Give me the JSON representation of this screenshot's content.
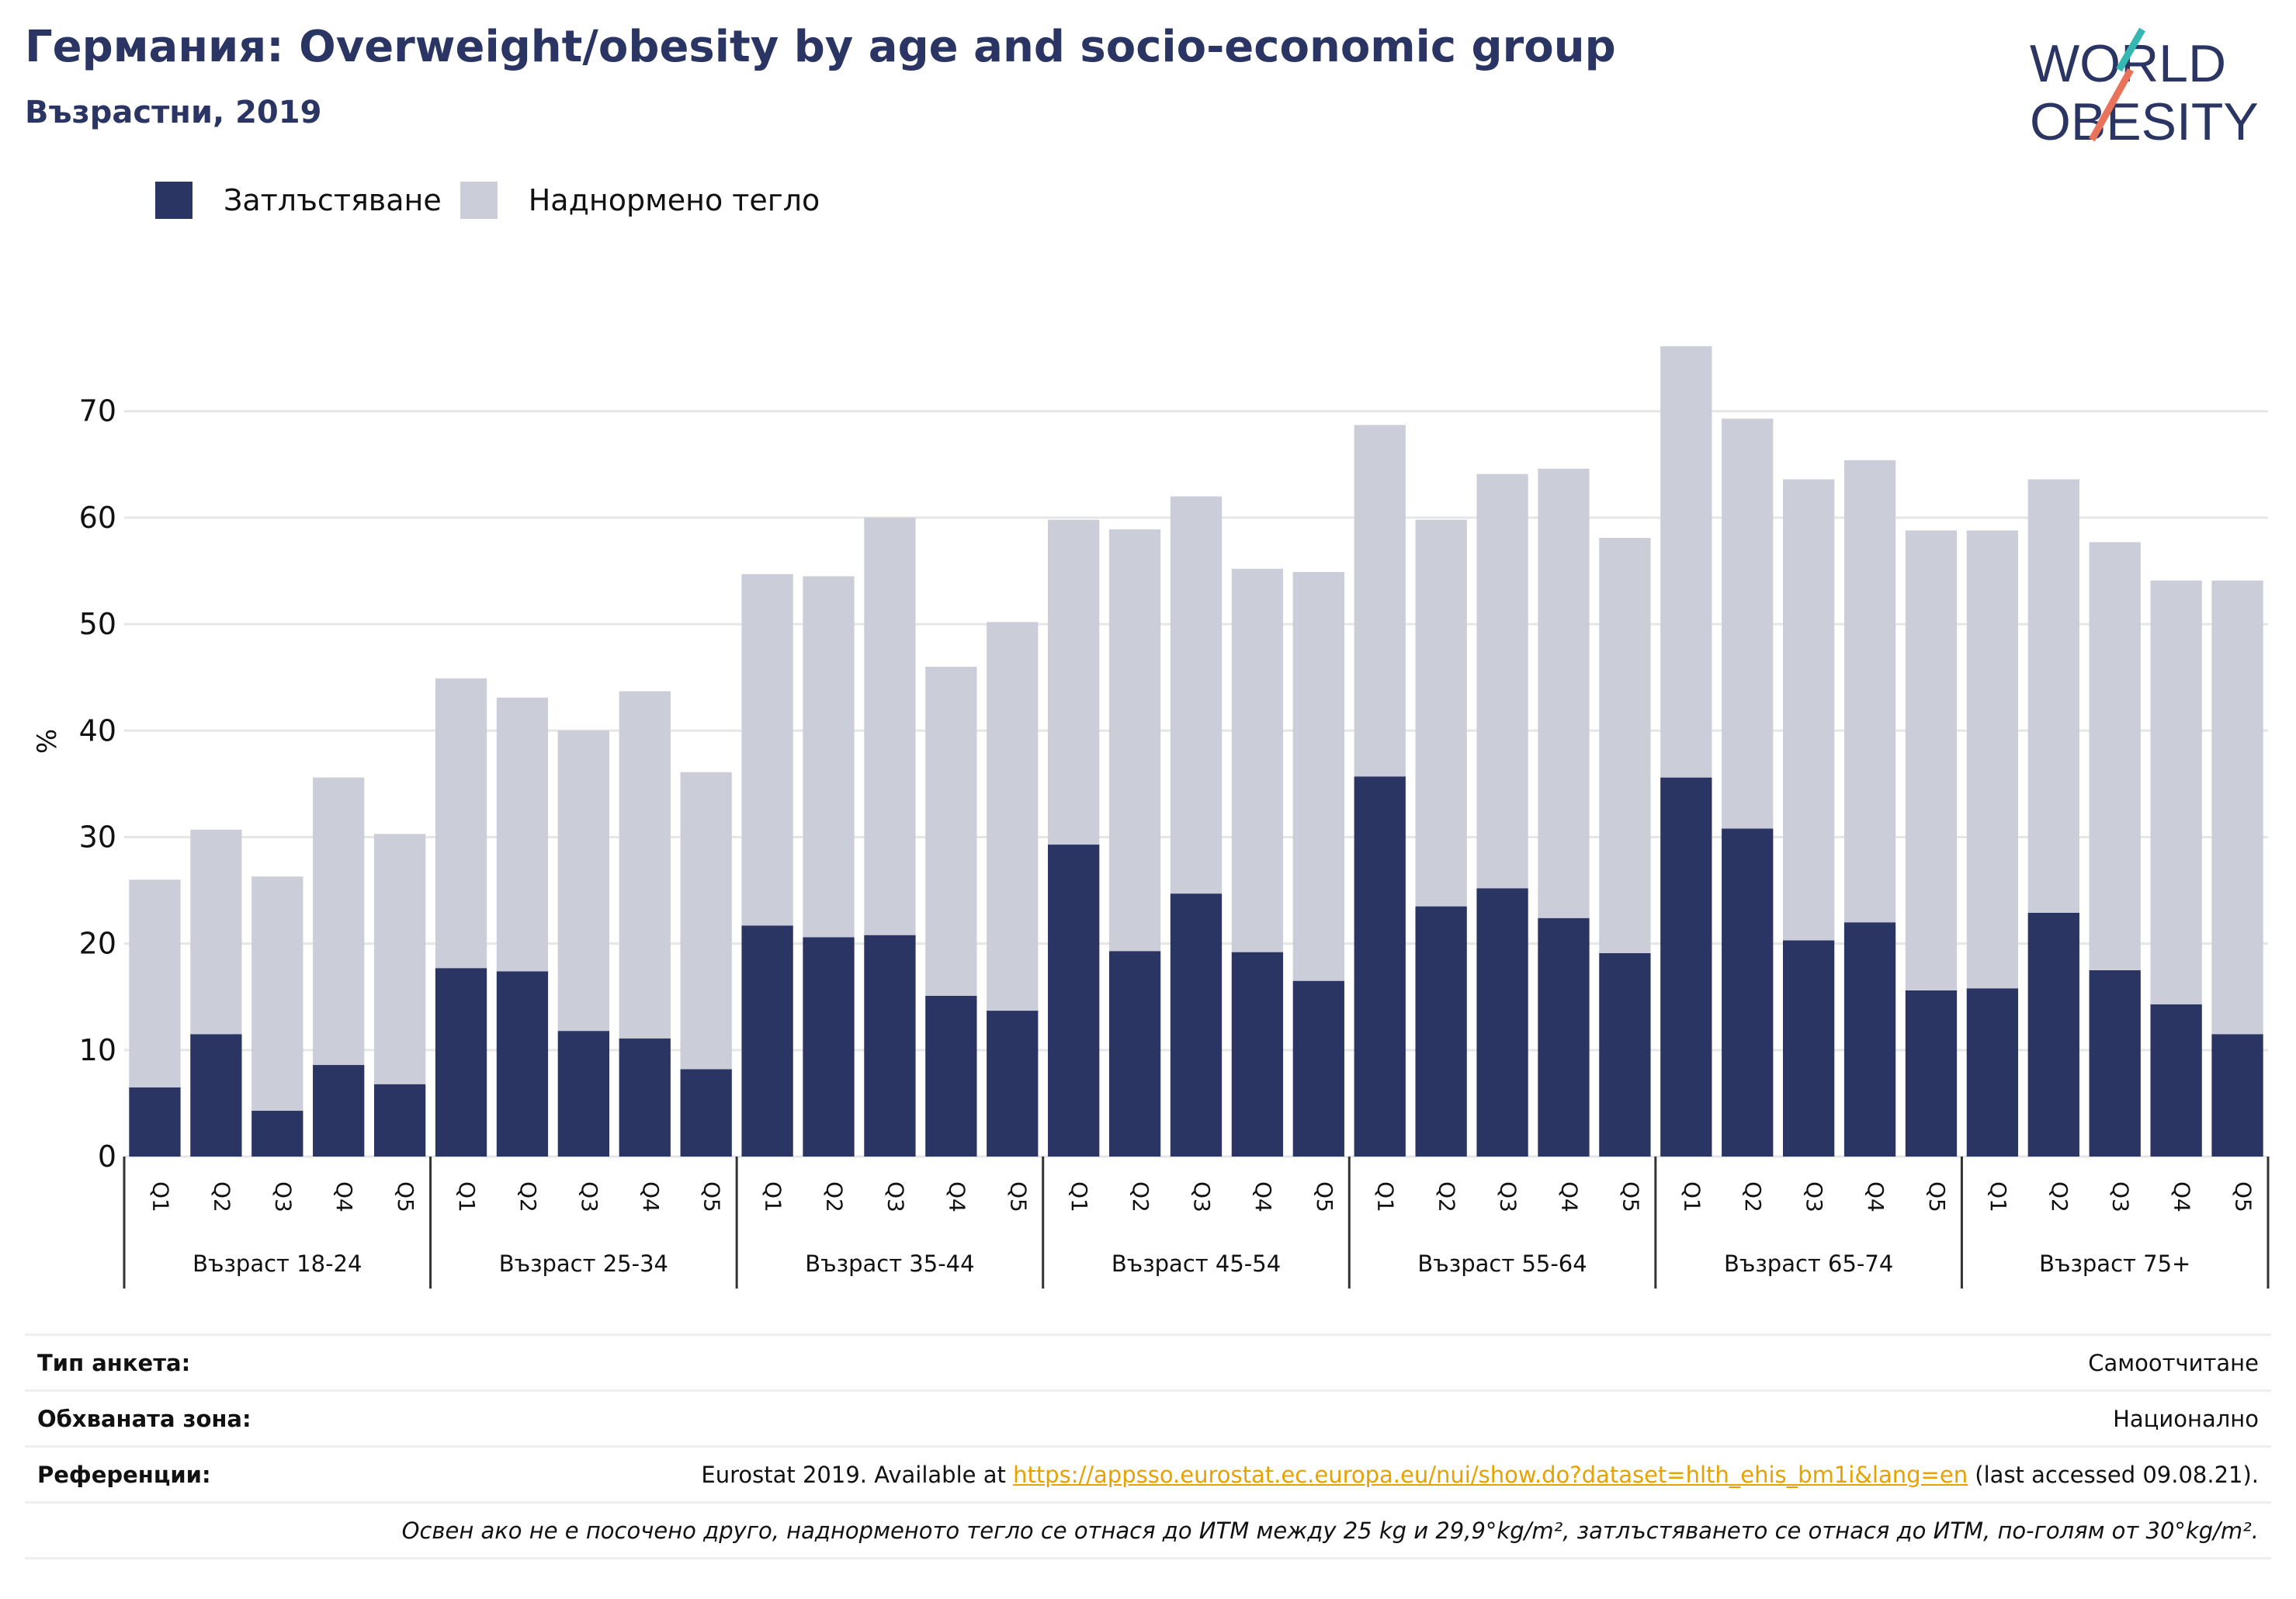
{
  "header": {
    "title": "Германия: Overweight/obesity by age and socio-economic group",
    "subtitle": "Възрастни, 2019",
    "logo_line1": "WORLD",
    "logo_line2": "OBESITY"
  },
  "legend": {
    "items": [
      {
        "label": "Затлъстяване",
        "color": "#2a3563"
      },
      {
        "label": "Наднормено тегло",
        "color": "#cbcdd9"
      }
    ]
  },
  "chart_data": {
    "type": "bar",
    "stacked": true,
    "ylabel": "%",
    "ylim": [
      0,
      78
    ],
    "yticks": [
      0,
      10,
      20,
      30,
      40,
      50,
      60,
      70
    ],
    "grid": true,
    "legend_position": "top-left",
    "groups": [
      {
        "label": "Възраст 18-24",
        "categories": [
          "Q1",
          "Q2",
          "Q3",
          "Q4",
          "Q5"
        ]
      },
      {
        "label": "Възраст 25-34",
        "categories": [
          "Q1",
          "Q2",
          "Q3",
          "Q4",
          "Q5"
        ]
      },
      {
        "label": "Възраст 35-44",
        "categories": [
          "Q1",
          "Q2",
          "Q3",
          "Q4",
          "Q5"
        ]
      },
      {
        "label": "Възраст 45-54",
        "categories": [
          "Q1",
          "Q2",
          "Q3",
          "Q4",
          "Q5"
        ]
      },
      {
        "label": "Възраст 55-64",
        "categories": [
          "Q1",
          "Q2",
          "Q3",
          "Q4",
          "Q5"
        ]
      },
      {
        "label": "Възраст 65-74",
        "categories": [
          "Q1",
          "Q2",
          "Q3",
          "Q4",
          "Q5"
        ]
      },
      {
        "label": "Възраст 75+",
        "categories": [
          "Q1",
          "Q2",
          "Q3",
          "Q4",
          "Q5"
        ]
      }
    ],
    "series": [
      {
        "name": "Затлъстяване",
        "color": "#2a3563",
        "values": [
          6.5,
          11.5,
          4.3,
          8.6,
          6.8,
          17.7,
          17.4,
          11.8,
          11.1,
          8.2,
          21.7,
          20.6,
          20.8,
          15.1,
          13.7,
          29.3,
          19.3,
          24.7,
          19.2,
          16.5,
          35.7,
          23.5,
          25.2,
          22.4,
          19.1,
          35.6,
          30.8,
          20.3,
          22.0,
          15.6,
          15.8,
          22.9,
          17.5,
          14.3,
          11.5
        ]
      },
      {
        "name": "Наднормено тегло",
        "color": "#cbcdd9",
        "values": [
          19.5,
          19.2,
          22.0,
          27.0,
          23.5,
          27.2,
          25.7,
          28.2,
          32.6,
          27.9,
          33.0,
          33.9,
          39.2,
          30.9,
          36.5,
          30.5,
          39.6,
          37.3,
          36.0,
          38.4,
          33.0,
          36.3,
          38.9,
          42.2,
          39.0,
          40.5,
          38.5,
          43.3,
          43.4,
          43.2,
          43.0,
          40.7,
          40.2,
          39.8,
          42.6
        ]
      }
    ]
  },
  "footer": {
    "survey_label": "Тип анкета:",
    "survey_value": "Самоотчитане",
    "area_label": "Обхваната зона:",
    "area_value": "Национално",
    "refs_label": "Референции:",
    "refs_prefix": "Eurostat 2019. Available at ",
    "refs_link": "https://appsso.eurostat.ec.europa.eu/nui/show.do?dataset=hlth_ehis_bm1i&lang=en",
    "refs_suffix": " (last accessed 09.08.21).",
    "note": "Освен ако не е посочено друго, наднорменото тегло се отнася до ИТМ между 25 kg и 29,9°kg/m², затлъстяването се отнася до ИТМ, по-голям от 30°kg/m²."
  }
}
